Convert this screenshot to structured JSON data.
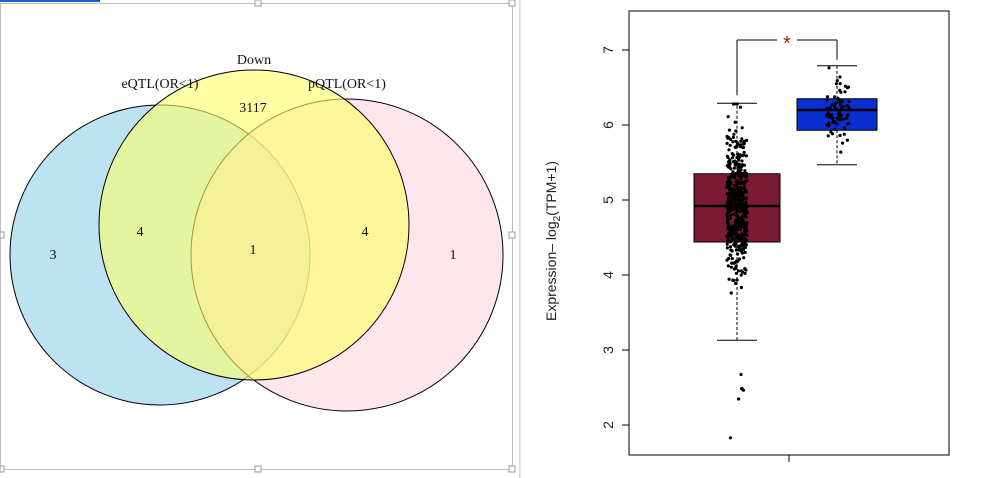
{
  "colors": {
    "venn_left": "#b9e1f2",
    "venn_top": "#ffff66",
    "venn_right": "#ffd6df",
    "box_low": "#7a1a35",
    "box_high": "#0a2fd0",
    "star": "#8b2a00"
  },
  "chart_data": [
    {
      "type": "venn",
      "sets": [
        {
          "name": "eQTL(OR<1)",
          "color": "#b9e1f2"
        },
        {
          "name": "Down",
          "color": "#ffff66"
        },
        {
          "name": "pQTL(OR<1)",
          "color": "#ffd6df"
        }
      ],
      "regions": [
        {
          "sets": [
            "eQTL(OR<1)"
          ],
          "value": "3"
        },
        {
          "sets": [
            "Down"
          ],
          "value": "3117"
        },
        {
          "sets": [
            "pQTL(OR<1)"
          ],
          "value": "1"
        },
        {
          "sets": [
            "eQTL(OR<1)",
            "Down"
          ],
          "value": "4"
        },
        {
          "sets": [
            "Down",
            "pQTL(OR<1)"
          ],
          "value": "4"
        },
        {
          "sets": [
            "eQTL(OR<1)",
            "Down",
            "pQTL(OR<1)"
          ],
          "value": "1"
        }
      ]
    },
    {
      "type": "box",
      "ylabel_main": "Expression",
      "ylabel_log": "– log",
      "ylabel_sub": "2",
      "ylabel_rest": "(TPM+1)",
      "ylim": [
        1.7,
        7.35
      ],
      "yticks": [
        "2",
        "3",
        "4",
        "5",
        "6",
        "7"
      ],
      "significance": "*",
      "boxes": [
        {
          "whisker_low": 3.13,
          "q1": 4.44,
          "median": 4.92,
          "q3": 5.35,
          "whisker_high": 6.29,
          "n_points": 480,
          "color": "#7a1a35"
        },
        {
          "whisker_low": 5.47,
          "q1": 5.93,
          "median": 6.2,
          "q3": 6.35,
          "whisker_high": 6.79,
          "n_points": 70,
          "color": "#0a2fd0"
        }
      ]
    }
  ]
}
